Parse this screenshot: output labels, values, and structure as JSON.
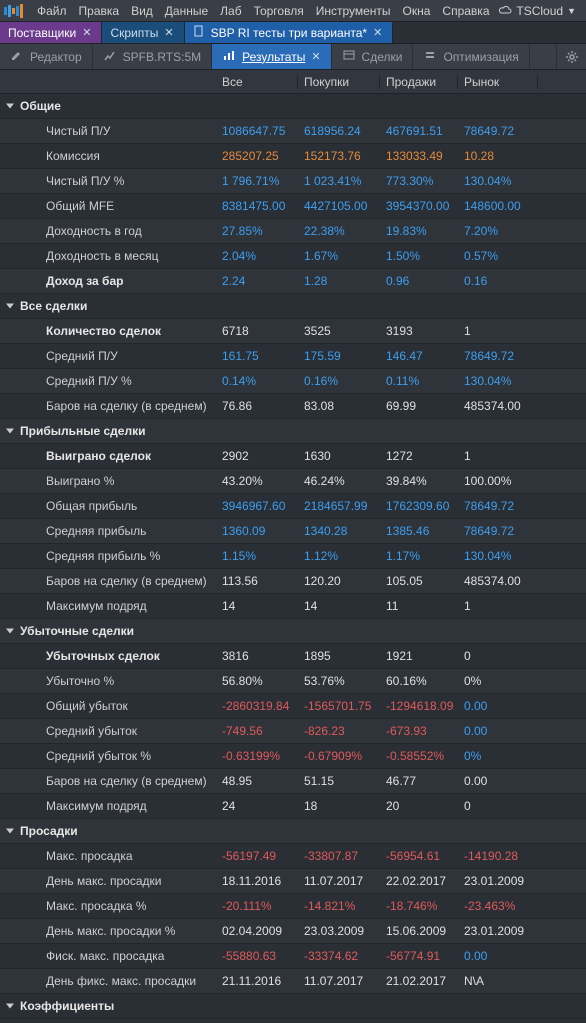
{
  "menubar": {
    "items": [
      "Файл",
      "Правка",
      "Вид",
      "Данные",
      "Лаб",
      "Торговля",
      "Инструменты",
      "Окна",
      "Справка"
    ],
    "cloud": "TSCloud",
    "logo_bars": [
      {
        "h": 8,
        "c": "#2a8cd6"
      },
      {
        "h": 12,
        "c": "#3aa0e8"
      },
      {
        "h": 6,
        "c": "#e68a3a"
      },
      {
        "h": 10,
        "c": "#2a8cd6"
      },
      {
        "h": 14,
        "c": "#e68a3a"
      }
    ]
  },
  "tabs": [
    {
      "label": "Поставщики",
      "cls": "tab-purple",
      "closable": true
    },
    {
      "label": "Скрипты",
      "cls": "tab-blue-dark",
      "closable": true
    },
    {
      "label": "SBP RI тесты три варианта*",
      "cls": "tab-blue-active",
      "closable": true,
      "icon": true
    }
  ],
  "subtabs": [
    {
      "label": "Редактор",
      "icon": "editor"
    },
    {
      "label": "SPFB.RTS:5M",
      "icon": "chart"
    },
    {
      "label": "Результаты",
      "icon": "results",
      "active": true,
      "closable": true
    },
    {
      "label": "Сделки",
      "icon": "trades"
    },
    {
      "label": "Оптимизация",
      "icon": "opt"
    }
  ],
  "columns": [
    "",
    "Все",
    "Покупки",
    "Продажи",
    "Рынок",
    ""
  ],
  "sections": [
    {
      "title": "Общие",
      "rows": [
        {
          "label": "Чистый П/У",
          "vals": [
            "1086647.75",
            "618956.24",
            "467691.51",
            "78649.72"
          ],
          "cls": [
            "c-blue",
            "c-blue",
            "c-blue",
            "c-blue"
          ]
        },
        {
          "label": "Комиссия",
          "vals": [
            "285207.25",
            "152173.76",
            "133033.49",
            "10.28"
          ],
          "cls": [
            "c-orange",
            "c-orange",
            "c-orange",
            "c-orange"
          ]
        },
        {
          "label": "Чистый П/У %",
          "vals": [
            "1 796.71%",
            "1 023.41%",
            "773.30%",
            "130.04%"
          ],
          "cls": [
            "c-blue",
            "c-blue",
            "c-blue",
            "c-blue"
          ]
        },
        {
          "label": "Общий MFE",
          "vals": [
            "8381475.00",
            "4427105.00",
            "3954370.00",
            "148600.00"
          ],
          "cls": [
            "c-blue",
            "c-blue",
            "c-blue",
            "c-blue"
          ]
        },
        {
          "label": "Доходность в год",
          "vals": [
            "27.85%",
            "22.38%",
            "19.83%",
            "7.20%"
          ],
          "cls": [
            "c-blue",
            "c-blue",
            "c-blue",
            "c-blue"
          ]
        },
        {
          "label": "Доходность в месяц",
          "vals": [
            "2.04%",
            "1.67%",
            "1.50%",
            "0.57%"
          ],
          "cls": [
            "c-blue",
            "c-blue",
            "c-blue",
            "c-blue"
          ]
        },
        {
          "label": "Доход за бар",
          "bold": true,
          "vals": [
            "2.24",
            "1.28",
            "0.96",
            "0.16"
          ],
          "cls": [
            "c-blue",
            "c-blue",
            "c-blue",
            "c-blue"
          ]
        }
      ]
    },
    {
      "title": "Все сделки",
      "rows": [
        {
          "label": "Количество сделок",
          "bold": true,
          "vals": [
            "6718",
            "3525",
            "3193",
            "1"
          ],
          "cls": [
            "c-white",
            "c-white",
            "c-white",
            "c-white"
          ]
        },
        {
          "label": "Средний П/У",
          "vals": [
            "161.75",
            "175.59",
            "146.47",
            "78649.72"
          ],
          "cls": [
            "c-blue",
            "c-blue",
            "c-blue",
            "c-blue"
          ]
        },
        {
          "label": "Средний П/У %",
          "vals": [
            "0.14%",
            "0.16%",
            "0.11%",
            "130.04%"
          ],
          "cls": [
            "c-blue",
            "c-blue",
            "c-blue",
            "c-blue"
          ]
        },
        {
          "label": "Баров на сделку (в среднем)",
          "vals": [
            "76.86",
            "83.08",
            "69.99",
            "485374.00"
          ],
          "cls": [
            "c-white",
            "c-white",
            "c-white",
            "c-white"
          ]
        }
      ]
    },
    {
      "title": "Прибыльные сделки",
      "rows": [
        {
          "label": "Выиграно сделок",
          "bold": true,
          "vals": [
            "2902",
            "1630",
            "1272",
            "1"
          ],
          "cls": [
            "c-white",
            "c-white",
            "c-white",
            "c-white"
          ]
        },
        {
          "label": "Выиграно %",
          "vals": [
            "43.20%",
            "46.24%",
            "39.84%",
            "100.00%"
          ],
          "cls": [
            "c-white",
            "c-white",
            "c-white",
            "c-white"
          ]
        },
        {
          "label": "Общая прибыль",
          "vals": [
            "3946967.60",
            "2184657.99",
            "1762309.60",
            "78649.72"
          ],
          "cls": [
            "c-blue",
            "c-blue",
            "c-blue",
            "c-blue"
          ]
        },
        {
          "label": "Средняя прибыль",
          "vals": [
            "1360.09",
            "1340.28",
            "1385.46",
            "78649.72"
          ],
          "cls": [
            "c-blue",
            "c-blue",
            "c-blue",
            "c-blue"
          ]
        },
        {
          "label": "Средняя прибыль %",
          "vals": [
            "1.15%",
            "1.12%",
            "1.17%",
            "130.04%"
          ],
          "cls": [
            "c-blue",
            "c-blue",
            "c-blue",
            "c-blue"
          ]
        },
        {
          "label": "Баров на сделку (в среднем)",
          "vals": [
            "113.56",
            "120.20",
            "105.05",
            "485374.00"
          ],
          "cls": [
            "c-white",
            "c-white",
            "c-white",
            "c-white"
          ]
        },
        {
          "label": "Максимум подряд",
          "vals": [
            "14",
            "14",
            "11",
            "1"
          ],
          "cls": [
            "c-white",
            "c-white",
            "c-white",
            "c-white"
          ]
        }
      ]
    },
    {
      "title": "Убыточные сделки",
      "rows": [
        {
          "label": "Убыточных сделок",
          "bold": true,
          "vals": [
            "3816",
            "1895",
            "1921",
            "0"
          ],
          "cls": [
            "c-white",
            "c-white",
            "c-white",
            "c-white"
          ]
        },
        {
          "label": "Убыточно %",
          "vals": [
            "56.80%",
            "53.76%",
            "60.16%",
            "0%"
          ],
          "cls": [
            "c-white",
            "c-white",
            "c-white",
            "c-white"
          ]
        },
        {
          "label": "Общий убыток",
          "vals": [
            "-2860319.84",
            "-1565701.75",
            "-1294618.09",
            "0.00"
          ],
          "cls": [
            "c-red",
            "c-red",
            "c-red",
            "c-blue"
          ]
        },
        {
          "label": "Средний убыток",
          "vals": [
            "-749.56",
            "-826.23",
            "-673.93",
            "0.00"
          ],
          "cls": [
            "c-red",
            "c-red",
            "c-red",
            "c-blue"
          ]
        },
        {
          "label": "Средний убыток %",
          "vals": [
            "-0.63199%",
            "-0.67909%",
            "-0.58552%",
            "0%"
          ],
          "cls": [
            "c-red",
            "c-red",
            "c-red",
            "c-blue"
          ]
        },
        {
          "label": "Баров на сделку (в среднем)",
          "vals": [
            "48.95",
            "51.15",
            "46.77",
            "0.00"
          ],
          "cls": [
            "c-white",
            "c-white",
            "c-white",
            "c-white"
          ]
        },
        {
          "label": "Максимум подряд",
          "vals": [
            "24",
            "18",
            "20",
            "0"
          ],
          "cls": [
            "c-white",
            "c-white",
            "c-white",
            "c-white"
          ]
        }
      ]
    },
    {
      "title": "Просадки",
      "rows": [
        {
          "label": "Макс. просадка",
          "vals": [
            "-56197.49",
            "-33807.87",
            "-56954.61",
            "-14190.28"
          ],
          "cls": [
            "c-red",
            "c-red",
            "c-red",
            "c-red"
          ]
        },
        {
          "label": "День макс. просадки",
          "vals": [
            "18.11.2016",
            "11.07.2017",
            "22.02.2017",
            "23.01.2009"
          ],
          "cls": [
            "c-white",
            "c-white",
            "c-white",
            "c-white"
          ]
        },
        {
          "label": "Макс. просадка %",
          "vals": [
            "-20.111%",
            "-14.821%",
            "-18.746%",
            "-23.463%"
          ],
          "cls": [
            "c-red",
            "c-red",
            "c-red",
            "c-red"
          ]
        },
        {
          "label": "День макс. просадки %",
          "vals": [
            "02.04.2009",
            "23.03.2009",
            "15.06.2009",
            "23.01.2009"
          ],
          "cls": [
            "c-white",
            "c-white",
            "c-white",
            "c-white"
          ]
        },
        {
          "label": "Фиск. макс. просадка",
          "vals": [
            "-55880.63",
            "-33374.62",
            "-56774.91",
            "0.00"
          ],
          "cls": [
            "c-red",
            "c-red",
            "c-red",
            "c-blue"
          ]
        },
        {
          "label": "День фикс. макс. просадки",
          "vals": [
            "21.11.2016",
            "11.07.2017",
            "21.02.2017",
            "N\\A"
          ],
          "cls": [
            "c-white",
            "c-white",
            "c-white",
            "c-white"
          ]
        }
      ]
    },
    {
      "title": "Коэффициенты",
      "rows": []
    }
  ]
}
